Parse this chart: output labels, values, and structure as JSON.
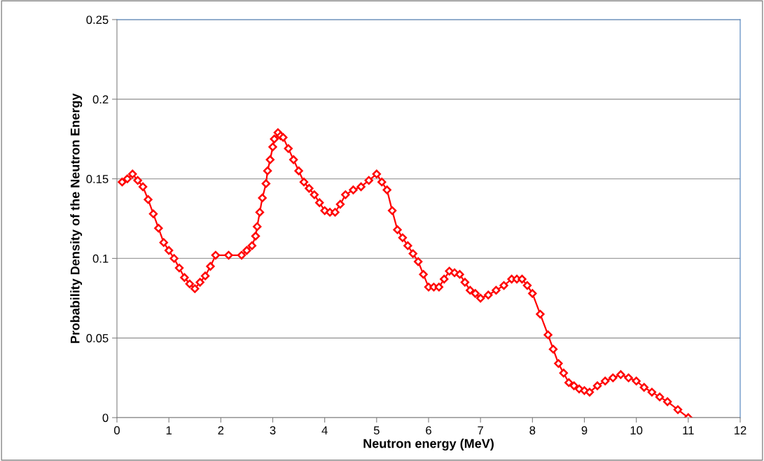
{
  "chart_data": {
    "type": "line",
    "xlabel": "Neutron energy (MeV)",
    "ylabel": "Probability Density of the Neutron Energy",
    "xlim": [
      0,
      12
    ],
    "xticks": [
      0,
      1,
      2,
      3,
      4,
      5,
      6,
      7,
      8,
      9,
      10,
      11,
      12
    ],
    "ylim": [
      0,
      0.25
    ],
    "yticks": [
      0,
      0.05,
      0.1,
      0.15,
      0.2,
      0.25
    ],
    "grid": "y",
    "marker": "diamond",
    "line_style": "solid",
    "legend": false,
    "series": [
      {
        "color": "#ff0000",
        "x": [
          0.1,
          0.2,
          0.3,
          0.4,
          0.5,
          0.6,
          0.7,
          0.8,
          0.9,
          1.0,
          1.1,
          1.2,
          1.3,
          1.4,
          1.5,
          1.6,
          1.7,
          1.8,
          1.9,
          2.15,
          2.4,
          2.5,
          2.6,
          2.67,
          2.7,
          2.75,
          2.8,
          2.87,
          2.9,
          2.95,
          3.0,
          3.03,
          3.1,
          3.15,
          3.2,
          3.3,
          3.4,
          3.5,
          3.6,
          3.7,
          3.8,
          3.9,
          4.0,
          4.1,
          4.2,
          4.3,
          4.4,
          4.55,
          4.7,
          4.85,
          5.0,
          5.1,
          5.2,
          5.3,
          5.4,
          5.5,
          5.6,
          5.7,
          5.8,
          5.9,
          6.0,
          6.1,
          6.2,
          6.3,
          6.4,
          6.5,
          6.6,
          6.7,
          6.8,
          6.9,
          7.0,
          7.15,
          7.3,
          7.45,
          7.6,
          7.7,
          7.8,
          7.9,
          8.0,
          8.15,
          8.3,
          8.4,
          8.5,
          8.6,
          8.7,
          8.8,
          8.9,
          9.0,
          9.1,
          9.25,
          9.4,
          9.55,
          9.7,
          9.85,
          10.0,
          10.15,
          10.3,
          10.45,
          10.6,
          10.8,
          11.0
        ],
        "values": [
          0.148,
          0.15,
          0.153,
          0.149,
          0.145,
          0.137,
          0.128,
          0.119,
          0.11,
          0.105,
          0.1,
          0.094,
          0.088,
          0.084,
          0.081,
          0.085,
          0.089,
          0.095,
          0.102,
          0.102,
          0.102,
          0.105,
          0.108,
          0.114,
          0.12,
          0.129,
          0.138,
          0.147,
          0.155,
          0.162,
          0.17,
          0.175,
          0.179,
          0.177,
          0.176,
          0.169,
          0.162,
          0.155,
          0.148,
          0.144,
          0.14,
          0.135,
          0.13,
          0.129,
          0.129,
          0.134,
          0.14,
          0.143,
          0.145,
          0.149,
          0.153,
          0.148,
          0.143,
          0.13,
          0.118,
          0.113,
          0.108,
          0.103,
          0.098,
          0.09,
          0.082,
          0.082,
          0.082,
          0.087,
          0.092,
          0.091,
          0.09,
          0.085,
          0.08,
          0.078,
          0.075,
          0.077,
          0.08,
          0.083,
          0.087,
          0.087,
          0.087,
          0.083,
          0.078,
          0.065,
          0.052,
          0.043,
          0.034,
          0.028,
          0.022,
          0.02,
          0.018,
          0.017,
          0.016,
          0.02,
          0.023,
          0.025,
          0.027,
          0.025,
          0.023,
          0.019,
          0.016,
          0.013,
          0.01,
          0.005,
          0.0
        ]
      }
    ]
  }
}
